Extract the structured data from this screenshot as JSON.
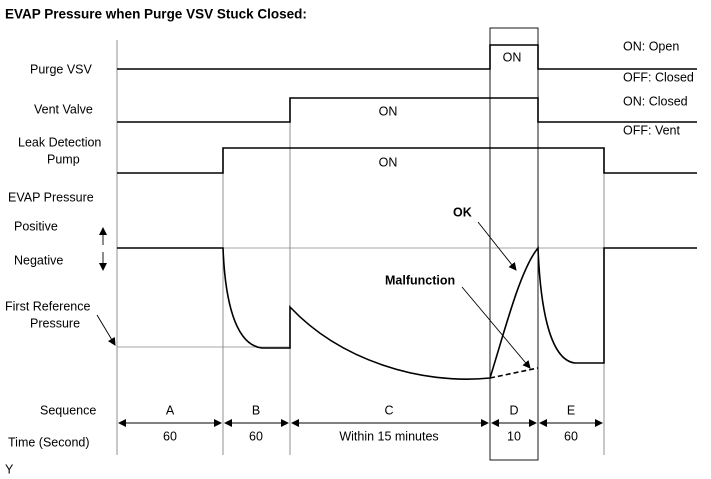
{
  "title": "EVAP Pressure when Purge VSV Stuck Closed:",
  "signals": {
    "purge_vsv": {
      "label": "Purge VSV",
      "on": "ON",
      "on_state": "ON: Open",
      "off_state": "OFF: Closed"
    },
    "vent_valve": {
      "label": "Vent Valve",
      "on": "ON",
      "on_state": "ON: Closed",
      "off_state": "OFF: Vent"
    },
    "pump": {
      "label": [
        "Leak Detection",
        "Pump"
      ],
      "on": "ON"
    },
    "evap_pressure": {
      "label": "EVAP Pressure",
      "positive": "Positive",
      "negative": "Negative",
      "reference": [
        "First Reference",
        "Pressure"
      ],
      "ok": "OK",
      "malfunction": "Malfunction"
    }
  },
  "sequence": {
    "label": "Sequence",
    "steps": [
      "A",
      "B",
      "C",
      "D",
      "E"
    ]
  },
  "time": {
    "label": "Time (Second)",
    "steps": [
      "60",
      "60",
      "Within 15 minutes",
      "10",
      "60"
    ]
  },
  "footnote": "Y"
}
